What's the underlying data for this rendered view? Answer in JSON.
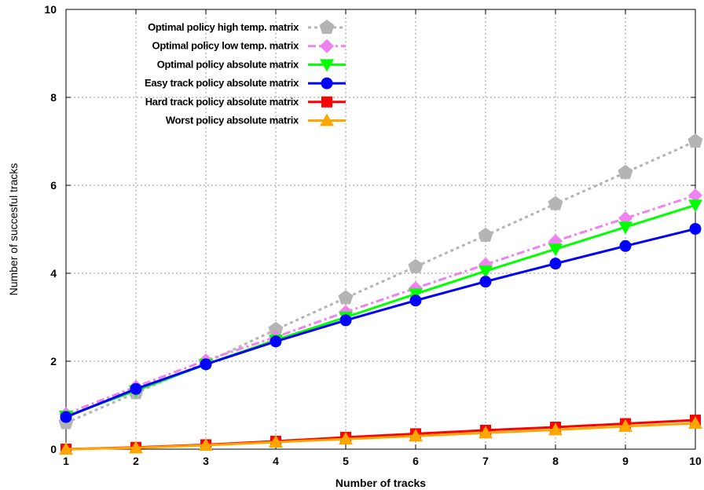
{
  "chart_data": {
    "type": "line",
    "title": "",
    "xlabel": "Number of tracks",
    "ylabel": "Number of succesful tracks",
    "xlim": [
      1,
      10
    ],
    "ylim": [
      0,
      10
    ],
    "x_ticks": [
      "1",
      "2",
      "3",
      "4",
      "5",
      "6",
      "7",
      "8",
      "9",
      "10"
    ],
    "y_ticks": [
      "0",
      "2",
      "4",
      "6",
      "8",
      "10"
    ],
    "grid": true,
    "legend_position": "top-left",
    "x": [
      1,
      2,
      3,
      4,
      5,
      6,
      7,
      8,
      9,
      10
    ],
    "series": [
      {
        "name": "Optimal policy high temp. matrix",
        "values": [
          0.6,
          1.28,
          1.97,
          2.72,
          3.44,
          4.15,
          4.86,
          5.58,
          6.29,
          7.0
        ],
        "color": "#b4b4b4",
        "marker": "pentagon",
        "line": "dotted"
      },
      {
        "name": "Optimal policy low temp. matrix",
        "values": [
          0.8,
          1.42,
          2.02,
          2.55,
          3.12,
          3.66,
          4.2,
          4.73,
          5.25,
          5.77
        ],
        "color": "#ee82ee",
        "marker": "diamond",
        "line": "dashdot"
      },
      {
        "name": "Optimal policy absolute matrix",
        "values": [
          0.75,
          1.33,
          1.93,
          2.48,
          3.0,
          3.53,
          4.05,
          4.55,
          5.05,
          5.55
        ],
        "color": "#00ff00",
        "marker": "triangle-down",
        "line": "solid"
      },
      {
        "name": "Easy track policy absolute matrix",
        "values": [
          0.73,
          1.37,
          1.93,
          2.45,
          2.93,
          3.38,
          3.81,
          4.22,
          4.62,
          5.01
        ],
        "color": "#0000ff",
        "marker": "circle",
        "line": "solid"
      },
      {
        "name": "Hard track policy absolute matrix",
        "values": [
          0.0,
          0.04,
          0.1,
          0.18,
          0.27,
          0.35,
          0.43,
          0.5,
          0.58,
          0.66
        ],
        "color": "#ff0000",
        "marker": "square",
        "line": "solid"
      },
      {
        "name": "Worst policy absolute matrix",
        "values": [
          0.0,
          0.03,
          0.09,
          0.16,
          0.23,
          0.3,
          0.37,
          0.44,
          0.52,
          0.59
        ],
        "color": "#ffa500",
        "marker": "triangle-up",
        "line": "solid"
      }
    ]
  }
}
